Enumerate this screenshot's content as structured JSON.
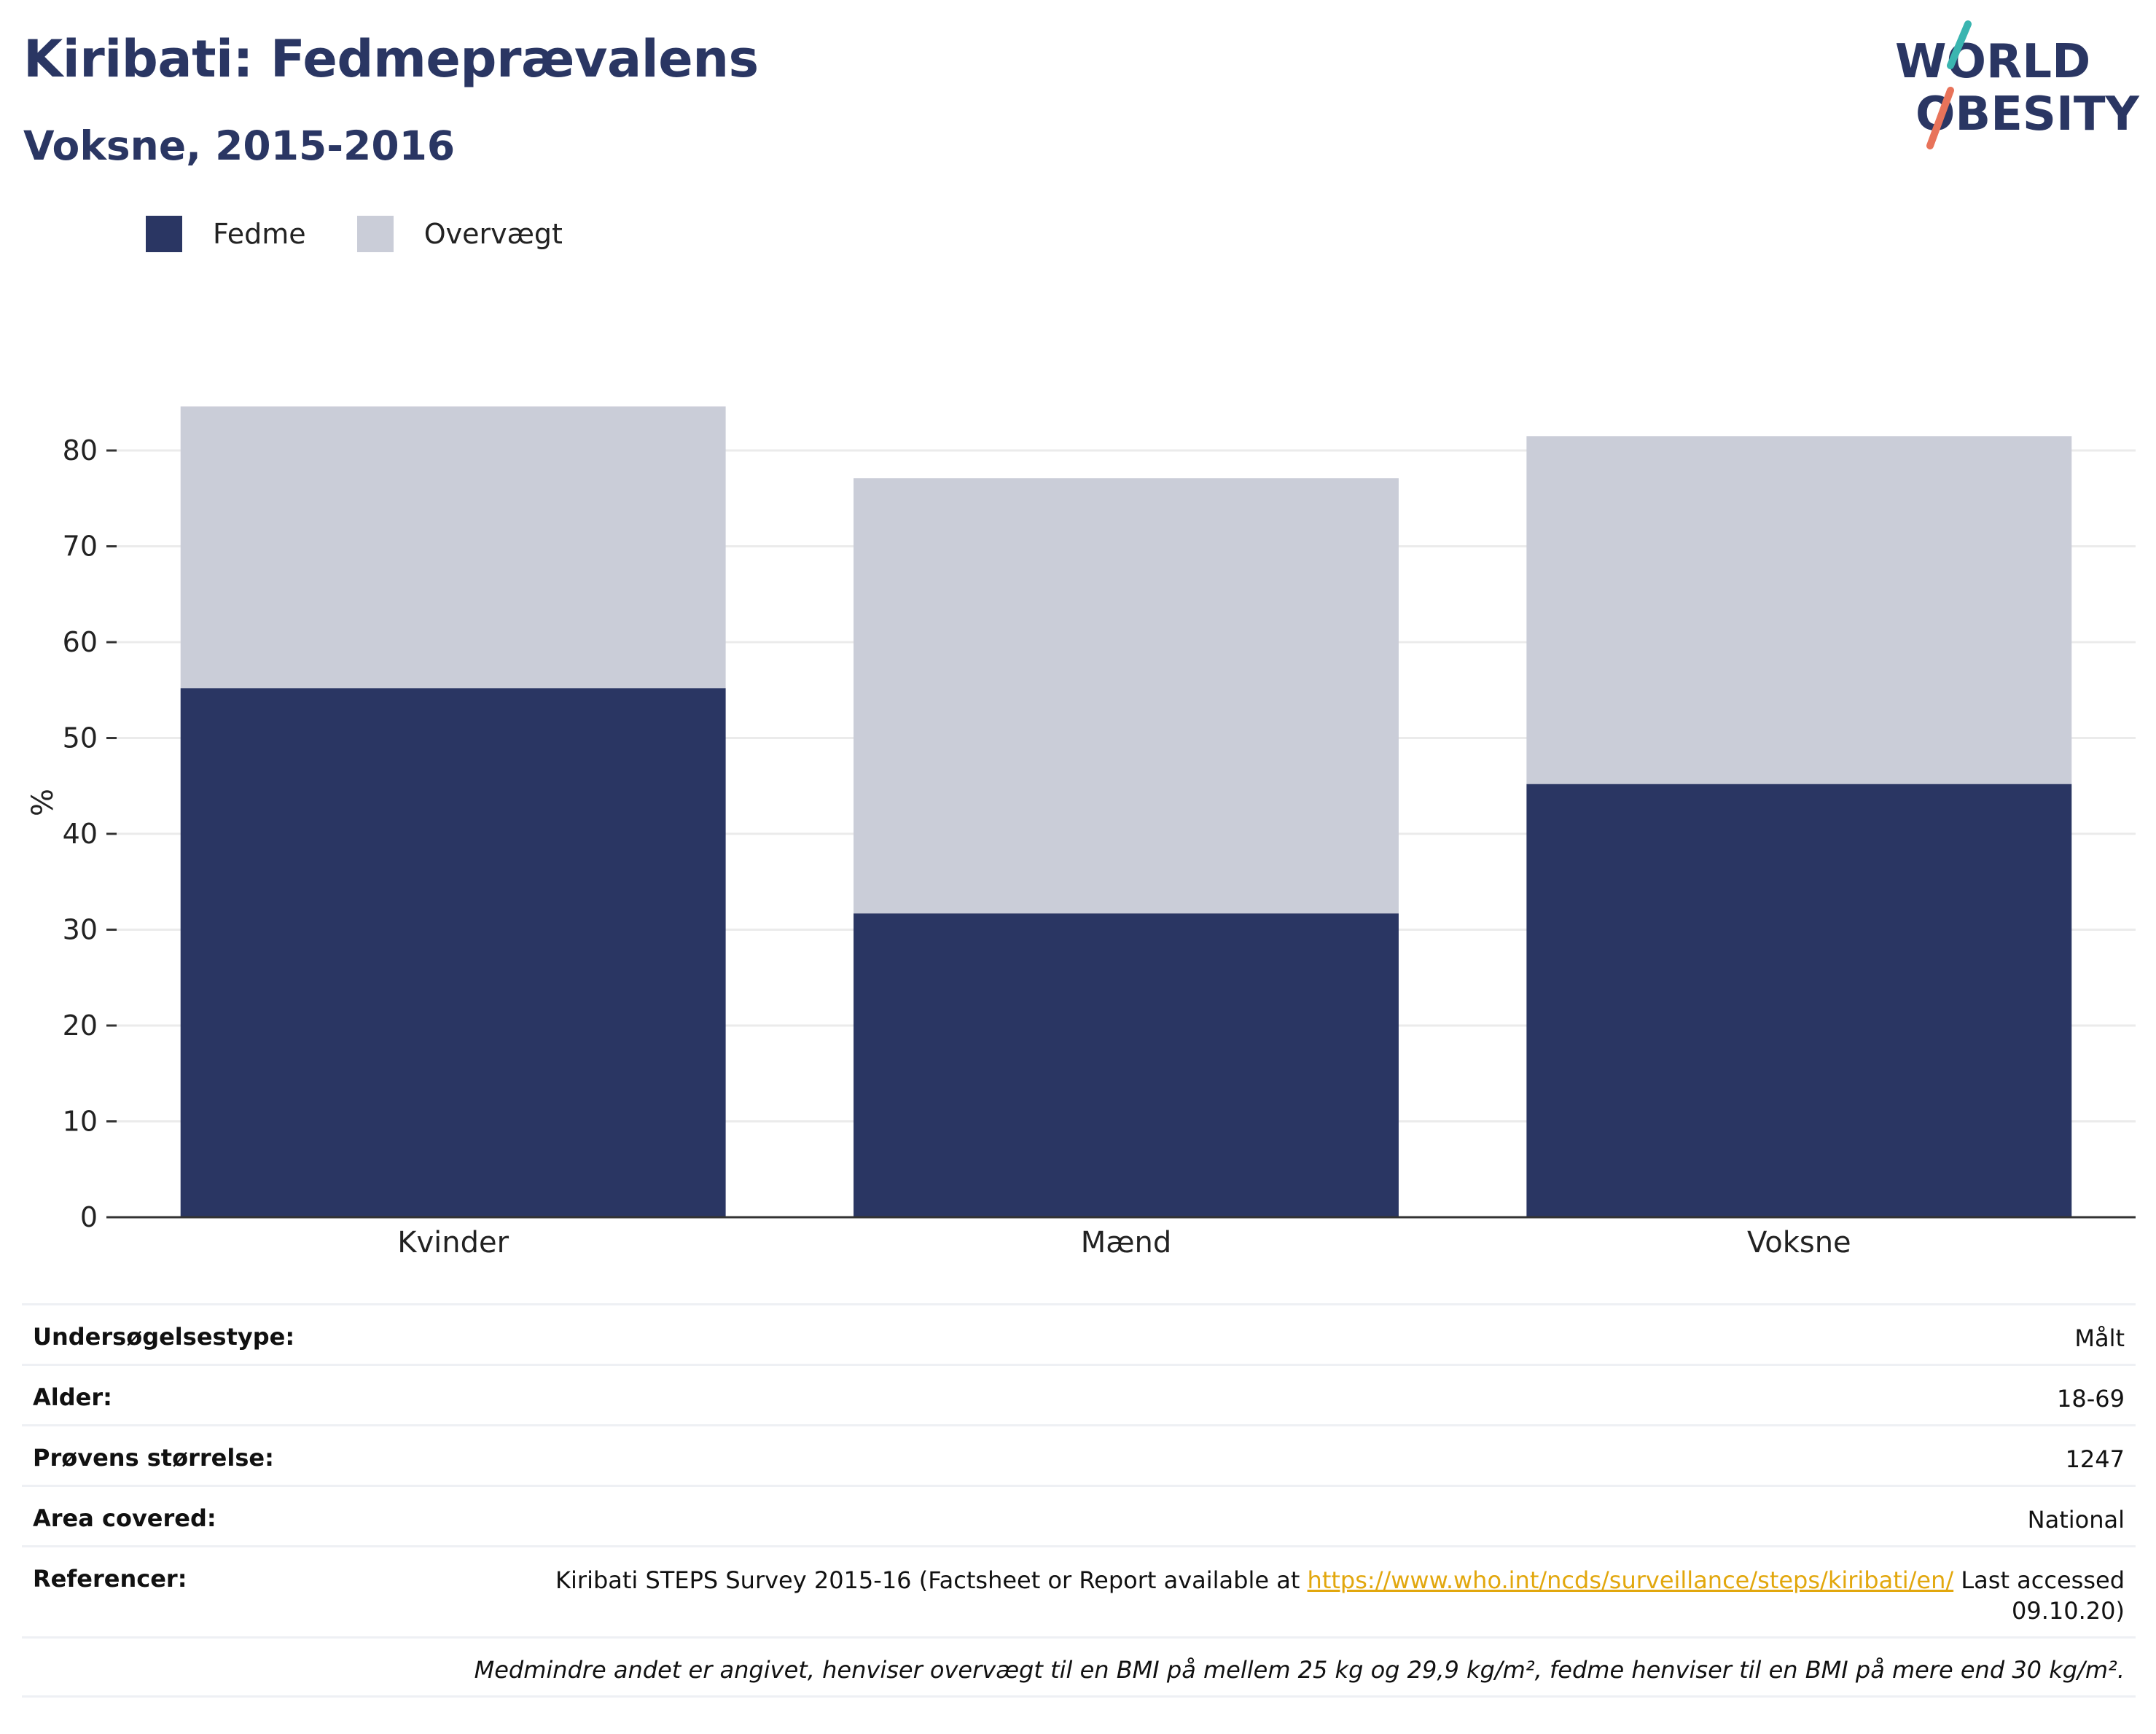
{
  "header": {
    "title": "Kiribati: Fedmeprævalens",
    "subtitle": "Voksne, 2015-2016"
  },
  "logo": {
    "line1": "WORLD",
    "line2": "OBESITY"
  },
  "colors": {
    "fedme": "#2a3663",
    "overvaegt": "#cacdd8",
    "accent_teal": "#3ab5b0",
    "accent_coral": "#e8735a",
    "link": "#e2a70d"
  },
  "chart_data": {
    "type": "bar",
    "stacked": true,
    "categories": [
      "Kvinder",
      "Mænd",
      "Voksne"
    ],
    "series": [
      {
        "name": "Fedme",
        "values": [
          55.2,
          31.7,
          45.2
        ]
      },
      {
        "name": "Overvægt",
        "values": [
          29.4,
          45.4,
          36.3
        ]
      }
    ],
    "totals": [
      84.6,
      77.1,
      81.5
    ],
    "ylabel": "%",
    "ylim": [
      0,
      87
    ],
    "yticks": [
      0,
      10,
      20,
      30,
      40,
      50,
      60,
      70,
      80
    ],
    "grid": true,
    "legend_position": "top-left"
  },
  "info": {
    "survey_type_label": "Undersøgelsestype:",
    "survey_type_value": "Målt",
    "age_label": "Alder:",
    "age_value": "18-69",
    "sample_label": "Prøvens størrelse:",
    "sample_value": "1247",
    "area_label": "Area covered:",
    "area_value": "National",
    "ref_label": "Referencer:",
    "ref_prefix": "Kiribati STEPS Survey 2015-16 (Factsheet or Report available at",
    "ref_link": "https://www.who.int/ncds/surveillance/steps/kiribati/en/",
    "ref_suffix": "Last accessed",
    "ref_date": "09.10.20)",
    "note": "Medmindre andet er angivet, henviser overvægt til en BMI på mellem 25 kg og 29,9 kg/m², fedme henviser til en BMI på mere end 30 kg/m²."
  }
}
